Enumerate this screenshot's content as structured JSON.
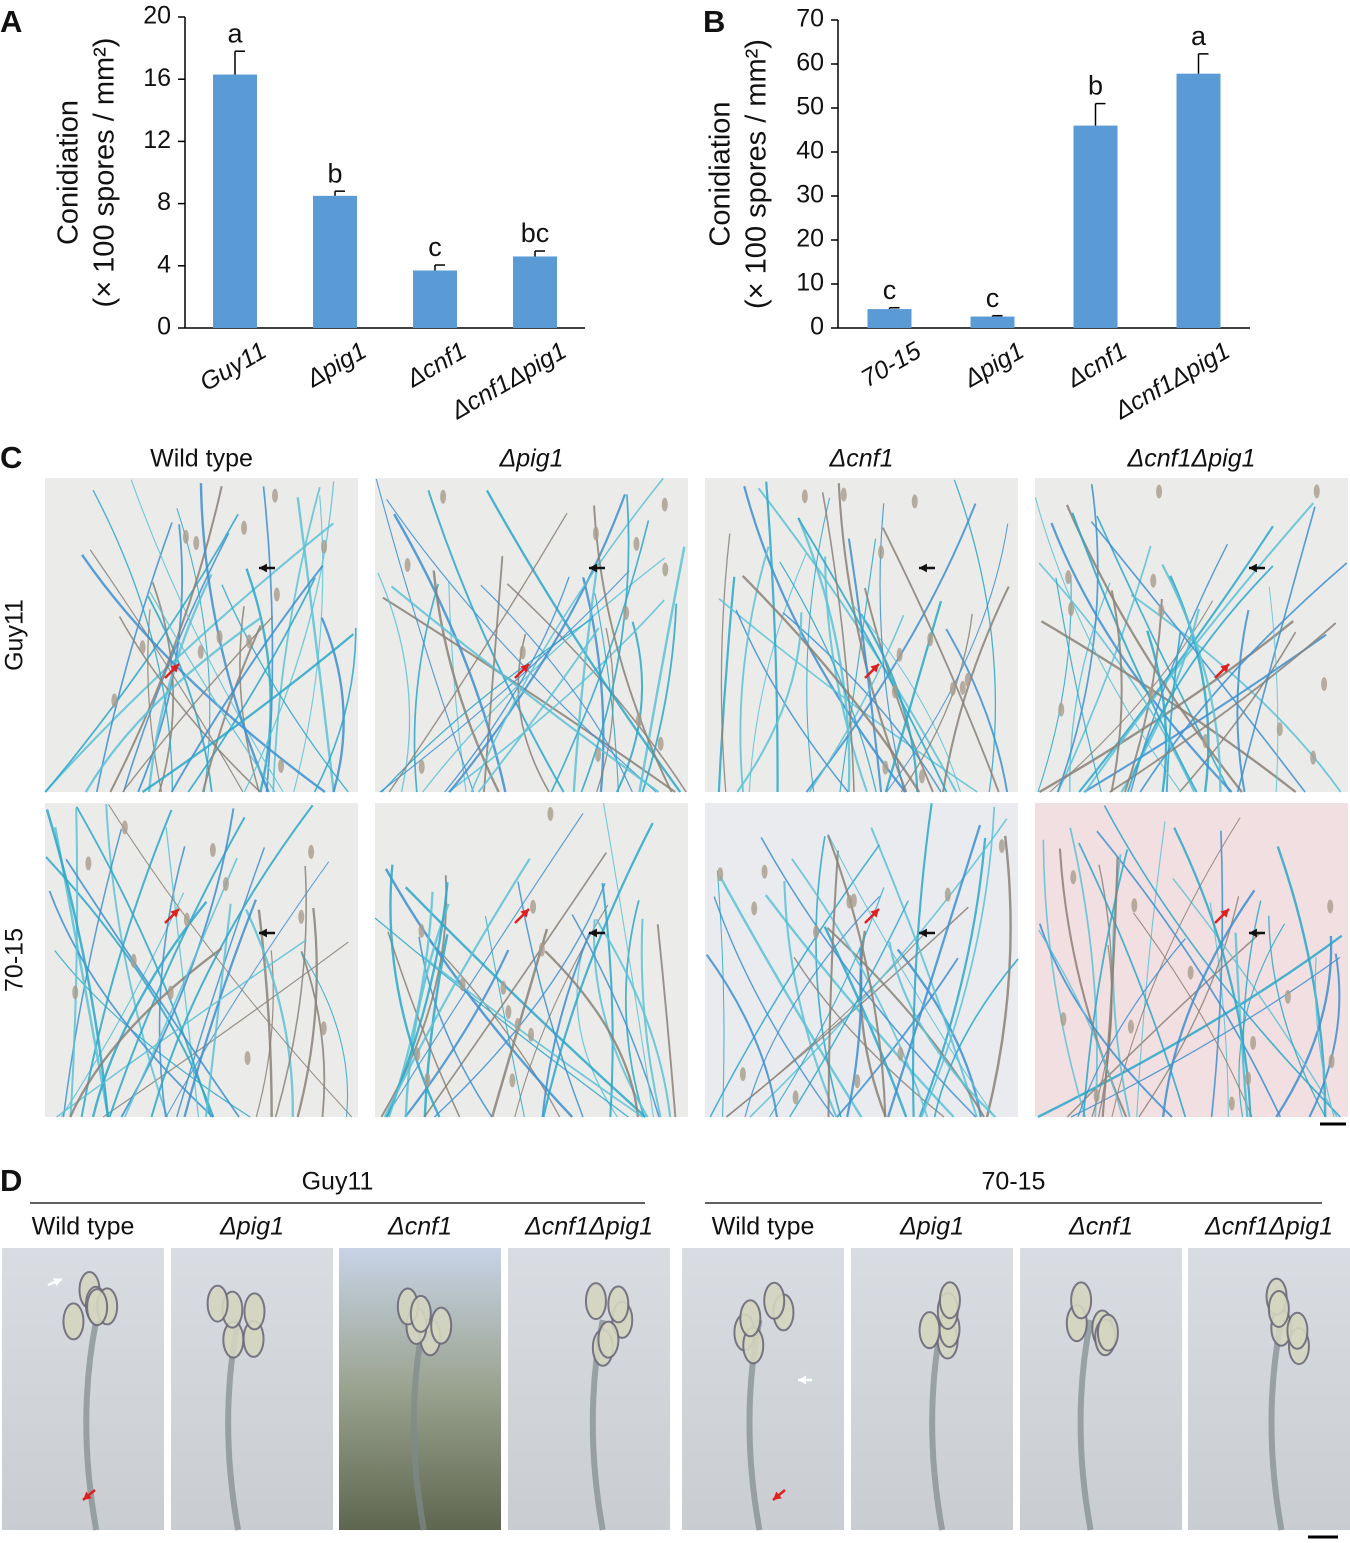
{
  "chart_data": [
    {
      "type": "bar",
      "label": "A",
      "ylabel": [
        "Conidiation",
        "(× 100 spores / mm²)"
      ],
      "categories": [
        "Guy11",
        "Δpig1",
        "Δcnf1",
        "Δcnf1Δpig1"
      ],
      "values": [
        16.3,
        8.5,
        3.7,
        4.6
      ],
      "errors": [
        1.5,
        0.3,
        0.35,
        0.35
      ],
      "annotations": [
        "a",
        "b",
        "c",
        "bc"
      ],
      "color": "#5b9bd5",
      "ylim": [
        0,
        20
      ],
      "yticks": [
        0,
        4,
        8,
        12,
        16,
        20
      ]
    },
    {
      "type": "bar",
      "label": "B",
      "ylabel": [
        "Conidiation",
        "(× 100 spores / mm²)"
      ],
      "categories": [
        "70-15",
        "Δpig1",
        "Δcnf1",
        "Δcnf1Δpig1"
      ],
      "values": [
        4.3,
        2.6,
        46,
        57.8
      ],
      "errors": [
        0.3,
        0.2,
        5,
        4.5
      ],
      "annotations": [
        "c",
        "c",
        "b",
        "a"
      ],
      "color": "#5b9bd5",
      "ylim": [
        0,
        70
      ],
      "yticks": [
        0,
        10,
        20,
        30,
        40,
        50,
        60,
        70
      ]
    }
  ],
  "panel_c": {
    "label": "C",
    "columns": [
      "Wild type",
      "Δpig1",
      "Δcnf1",
      "Δcnf1Δpig1"
    ],
    "rows": [
      "Guy11",
      "70-15"
    ]
  },
  "panel_d": {
    "label": "D",
    "groups": [
      {
        "name": "Guy11",
        "columns": [
          "Wild type",
          "Δpig1",
          "Δcnf1",
          "Δcnf1Δpig1"
        ]
      },
      {
        "name": "70-15",
        "columns": [
          "Wild type",
          "Δpig1",
          "Δcnf1",
          "Δcnf1Δpig1"
        ]
      }
    ]
  }
}
